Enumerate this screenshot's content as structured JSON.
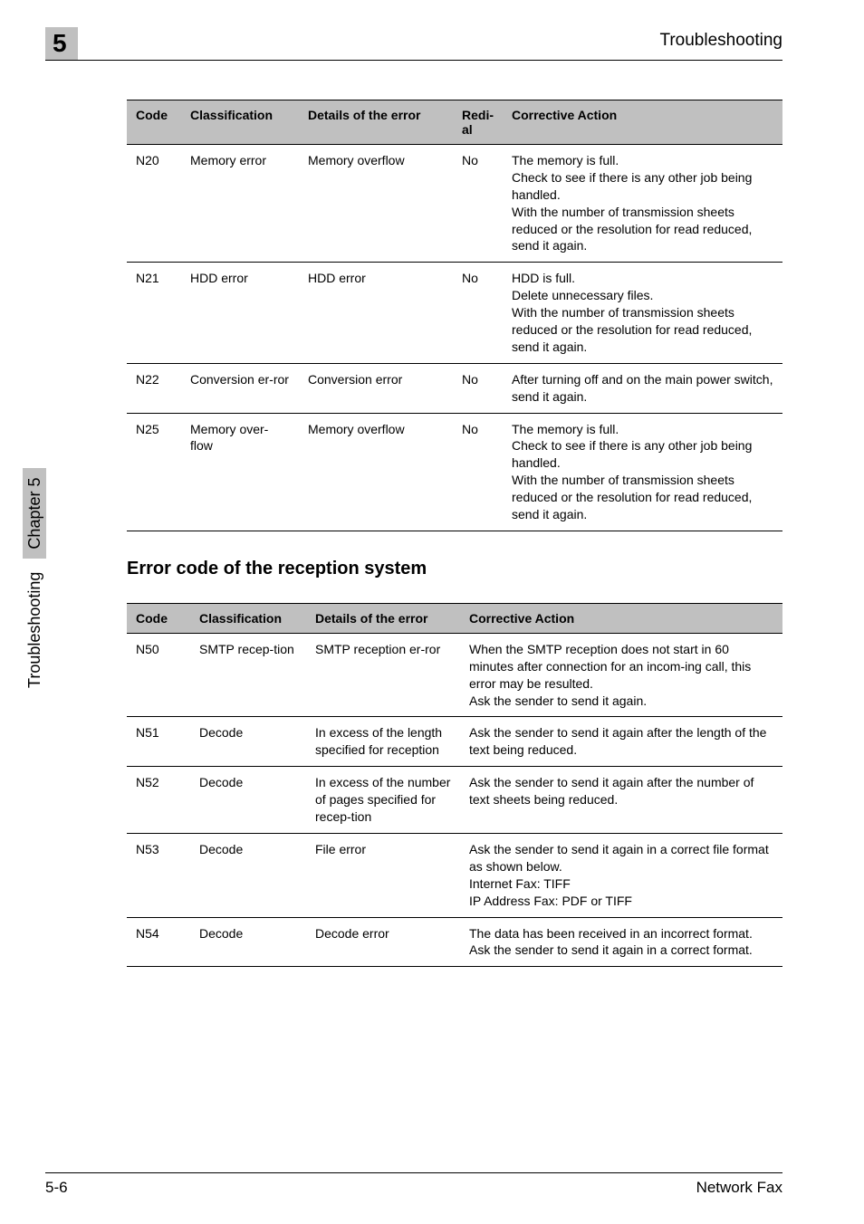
{
  "header": {
    "chapterNum": "5",
    "title": "Troubleshooting"
  },
  "sidebar": {
    "text": "Troubleshooting",
    "chapter": "Chapter 5"
  },
  "table1": {
    "columns": {
      "code": "Code",
      "classification": "Classification",
      "details": "Details of the error",
      "redial": "Redi-al",
      "action": "Corrective Action"
    },
    "colWidths": [
      "60px",
      "130px",
      "170px",
      "55px",
      "auto"
    ],
    "rows": [
      {
        "code": "N20",
        "classification": "Memory error",
        "details": "Memory overflow",
        "redial": "No",
        "action": "The memory is full.\nCheck to see if there is any other job being handled.\nWith the number of transmission sheets reduced or the resolution for read reduced, send it again."
      },
      {
        "code": "N21",
        "classification": "HDD error",
        "details": "HDD error",
        "redial": "No",
        "action": "HDD is full.\nDelete unnecessary files.\nWith the number of transmission sheets reduced or the resolution for read reduced, send it again."
      },
      {
        "code": "N22",
        "classification": "Conversion er-ror",
        "details": "Conversion error",
        "redial": "No",
        "action": "After turning off and on the main power switch, send it again."
      },
      {
        "code": "N25",
        "classification": "Memory over-flow",
        "details": "Memory overflow",
        "redial": "No",
        "action": "The memory is full.\nCheck to see if there is any other job being handled.\nWith the number of transmission sheets reduced or the resolution for read reduced, send it again."
      }
    ]
  },
  "sectionTitle": "Error code of the reception system",
  "table2": {
    "columns": {
      "code": "Code",
      "classification": "Classification",
      "details": "Details of the error",
      "action": "Corrective Action"
    },
    "colWidths": [
      "70px",
      "128px",
      "170px",
      "auto"
    ],
    "rows": [
      {
        "code": "N50",
        "classification": "SMTP recep-tion",
        "details": "SMTP reception er-ror",
        "action": "When the SMTP reception does not start in 60 minutes after connection for an incom-ing call, this error may be resulted.\nAsk the sender to send it again."
      },
      {
        "code": "N51",
        "classification": "Decode",
        "details": "In excess of the length specified for reception",
        "action": "Ask the sender to send it again after the length of the text being reduced."
      },
      {
        "code": "N52",
        "classification": "Decode",
        "details": "In excess of the number of pages specified for recep-tion",
        "action": "Ask the sender to send it again after the number of text sheets being reduced."
      },
      {
        "code": "N53",
        "classification": "Decode",
        "details": "File error",
        "action": "Ask the sender to send it again in a correct file format as shown below.\nInternet Fax: TIFF\nIP Address Fax: PDF or TIFF"
      },
      {
        "code": "N54",
        "classification": "Decode",
        "details": "Decode error",
        "action": "The data has been received in an incorrect format. Ask the sender to send it again in a correct format."
      }
    ]
  },
  "footer": {
    "left": "5-6",
    "right": "Network Fax"
  }
}
